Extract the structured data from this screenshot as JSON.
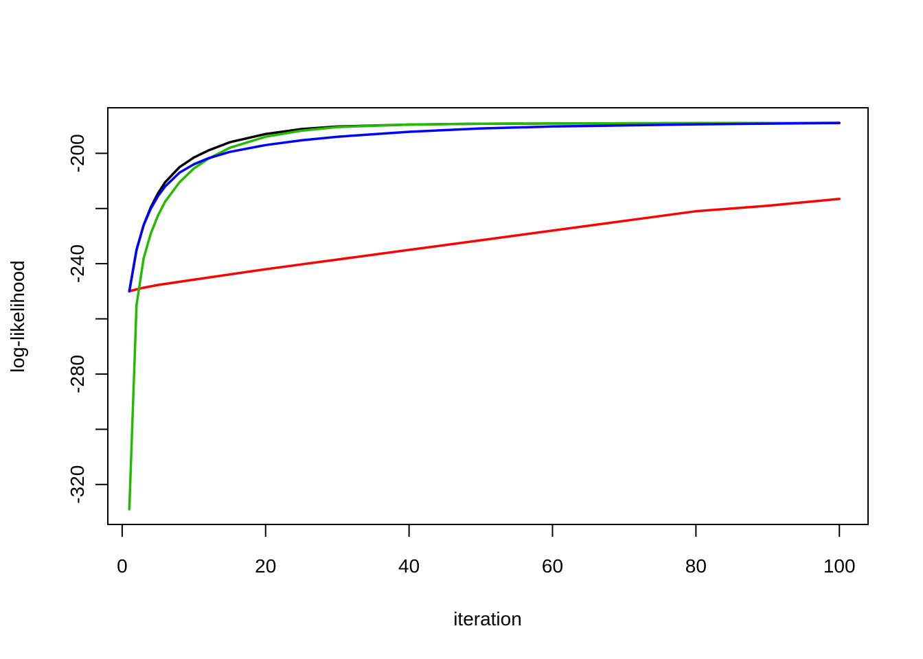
{
  "chart_data": {
    "type": "line",
    "title": "",
    "xlabel": "iteration",
    "ylabel": "log-likelihood",
    "xlim": [
      -2,
      104
    ],
    "ylim": [
      -334.5,
      -183.5
    ],
    "x_ticks": [
      0,
      20,
      40,
      60,
      80,
      100
    ],
    "x_tick_labels": [
      "0",
      "20",
      "40",
      "60",
      "80",
      "100"
    ],
    "y_ticks": [
      -320,
      -300,
      -280,
      -260,
      -240,
      -220,
      -200
    ],
    "y_tick_labels": [
      {
        "value": -320,
        "label": "-320"
      },
      {
        "value": -280,
        "label": "-280"
      },
      {
        "value": -240,
        "label": "-240"
      },
      {
        "value": -200,
        "label": "-200"
      }
    ],
    "grid": false,
    "series": [
      {
        "color": "#000000",
        "x": [
          1,
          2,
          3,
          4,
          5,
          6,
          8,
          10,
          12,
          15,
          20,
          25,
          30,
          40,
          50,
          60,
          80,
          100
        ],
        "y": [
          -250,
          -235,
          -226,
          -219.5,
          -214.5,
          -210.5,
          -205,
          -201.5,
          -199,
          -196,
          -193,
          -191.2,
          -190.3,
          -189.6,
          -189.3,
          -189.2,
          -189.1,
          -189
        ]
      },
      {
        "color": "#ff0000",
        "x": [
          1,
          2,
          3,
          5,
          10,
          20,
          30,
          40,
          50,
          60,
          70,
          80,
          90,
          100
        ],
        "y": [
          -250,
          -249.3,
          -248.7,
          -247.7,
          -245.8,
          -242,
          -238.5,
          -235,
          -231.5,
          -228,
          -224.5,
          -221,
          -219,
          -216.5
        ]
      },
      {
        "color": "#22bb00",
        "x": [
          1,
          2,
          3,
          4,
          5,
          6,
          8,
          10,
          12,
          15,
          20,
          25,
          30,
          40,
          50,
          60,
          80,
          100
        ],
        "y": [
          -329,
          -255,
          -238,
          -229,
          -222.5,
          -217.5,
          -210.5,
          -205.5,
          -202,
          -198,
          -194,
          -191.8,
          -190.5,
          -189.6,
          -189.3,
          -189.2,
          -189.1,
          -189
        ]
      },
      {
        "color": "#0000ff",
        "x": [
          1,
          2,
          3,
          4,
          5,
          6,
          8,
          10,
          12,
          15,
          20,
          25,
          30,
          40,
          50,
          60,
          80,
          100
        ],
        "y": [
          -250,
          -235,
          -226,
          -220,
          -215.5,
          -212,
          -207,
          -204,
          -201.8,
          -199.5,
          -197,
          -195.3,
          -194,
          -192.2,
          -191,
          -190.3,
          -189.5,
          -189
        ]
      }
    ]
  }
}
